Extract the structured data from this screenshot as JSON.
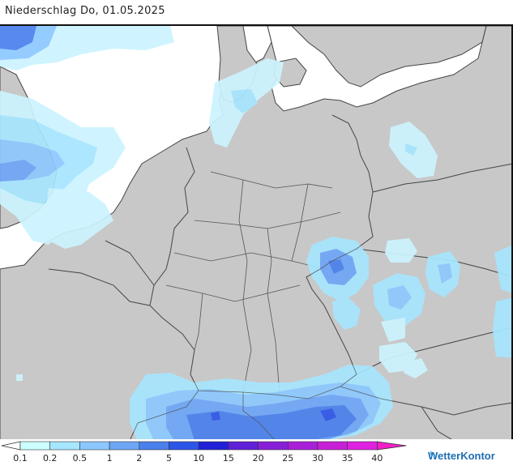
{
  "title": "Niederschlag Do, 01.05.2025",
  "legend": {
    "labels": [
      "0.1",
      "0.2",
      "0.5",
      "1",
      "2",
      "5",
      "10",
      "15",
      "20",
      "25",
      "30",
      "35",
      "40"
    ],
    "colors": [
      "#ffffff",
      "#ccffff",
      "#a6e6ff",
      "#8cc8ff",
      "#6ea6f6",
      "#4a80ec",
      "#2d55e8",
      "#2020d8",
      "#6020d8",
      "#8820d8",
      "#a820d8",
      "#c820d8",
      "#e020e0",
      "#f020c8"
    ]
  },
  "brand": {
    "name": "WetterKontor"
  },
  "colors": {
    "land": "#c8c8c8",
    "sea": "#ffffff",
    "border": "#444444"
  }
}
